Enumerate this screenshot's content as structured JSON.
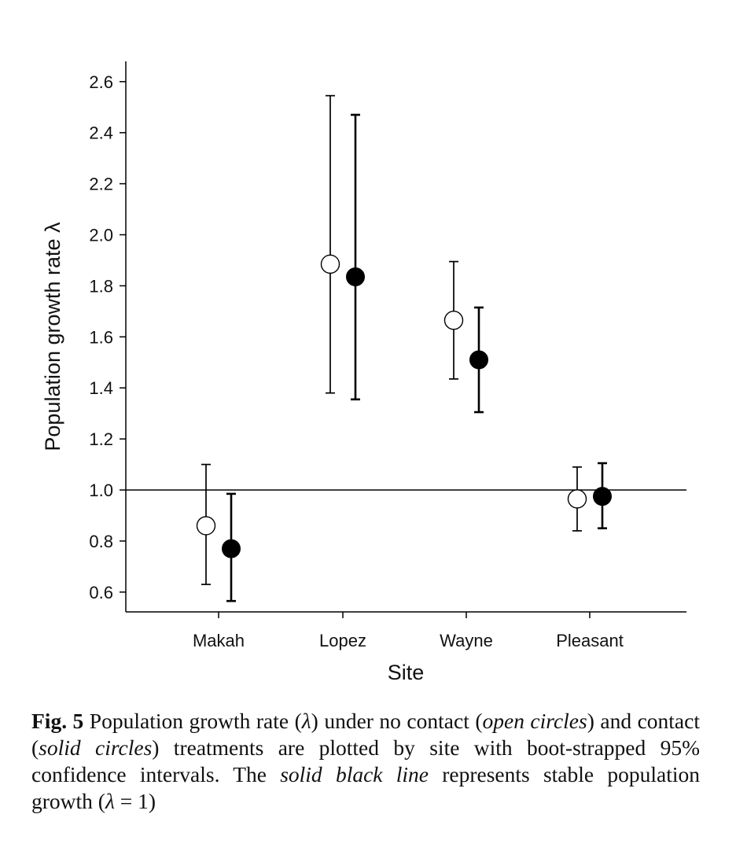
{
  "chart_data": {
    "type": "scatter",
    "title": "",
    "xlabel": "Site",
    "ylabel": "Population growth rate  λ",
    "ylim": [
      0.52,
      2.68
    ],
    "yticks": [
      "0.6",
      "0.8",
      "1.0",
      "1.2",
      "1.4",
      "1.6",
      "1.8",
      "2.0",
      "2.2",
      "2.4",
      "2.6"
    ],
    "categories": [
      "Makah",
      "Lopez",
      "Wayne",
      "Pleasant"
    ],
    "reference_line": 1.0,
    "grid": false,
    "series": [
      {
        "marker": "open circle",
        "color": "#000000",
        "values": [
          0.86,
          1.885,
          1.665,
          0.965
        ],
        "ci_low": [
          0.63,
          1.38,
          1.435,
          0.84
        ],
        "ci_high": [
          1.1,
          2.545,
          1.895,
          1.09
        ]
      },
      {
        "marker": "solid circle",
        "color": "#000000",
        "values": [
          0.77,
          1.835,
          1.51,
          0.975
        ],
        "ci_low": [
          0.565,
          1.355,
          1.305,
          0.85
        ],
        "ci_high": [
          0.985,
          2.47,
          1.715,
          1.105
        ]
      }
    ]
  },
  "caption": {
    "label": "Fig. 5",
    "parts": [
      {
        "text": "  Population growth rate (",
        "italic": false
      },
      {
        "text": "λ",
        "italic": true
      },
      {
        "text": ") under no contact (",
        "italic": false
      },
      {
        "text": "open circles",
        "italic": true
      },
      {
        "text": ") and contact (",
        "italic": false
      },
      {
        "text": "solid circles",
        "italic": true
      },
      {
        "text": ") treatments are plotted by site with boot-strapped 95% confidence intervals. The ",
        "italic": false
      },
      {
        "text": "solid black line",
        "italic": true
      },
      {
        "text": " represents stable population growth (",
        "italic": false
      },
      {
        "text": "λ",
        "italic": true
      },
      {
        "text": " = 1)",
        "italic": false
      }
    ]
  }
}
